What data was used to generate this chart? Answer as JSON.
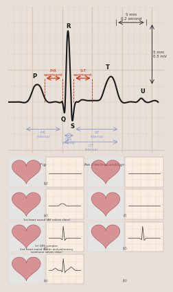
{
  "bg_color": "#f5f0eb",
  "grid_color": "#d8c8b8",
  "ecg_line_color": "#1a1a1a",
  "figure_caption": "Figure 10: Showing the Electrocardiogram.",
  "label_P": "P",
  "label_Q": "Q",
  "label_R": "R",
  "label_S": "S",
  "label_T": "T",
  "label_U": "U",
  "label_PR_seg": "P-R\nsegment",
  "label_ST_seg": "S-T\nsegment",
  "label_PR_int": "P-R\ninterval",
  "label_QRS_int": "QRS\ninterval",
  "label_ST_int": "S-T\ninterval",
  "label_QT_int": "Q-T\ninterval",
  "label_5mm_h": "5 mm\n0.2 second",
  "label_5mm_v": "5 mm\n0.5 mV",
  "red_color": "#cc2200",
  "blue_color": "#8899cc",
  "annotation_color": "#8899cc",
  "top_panel_bg": "#f8f4ef",
  "bottom_panel_bg": "#f0ede8"
}
